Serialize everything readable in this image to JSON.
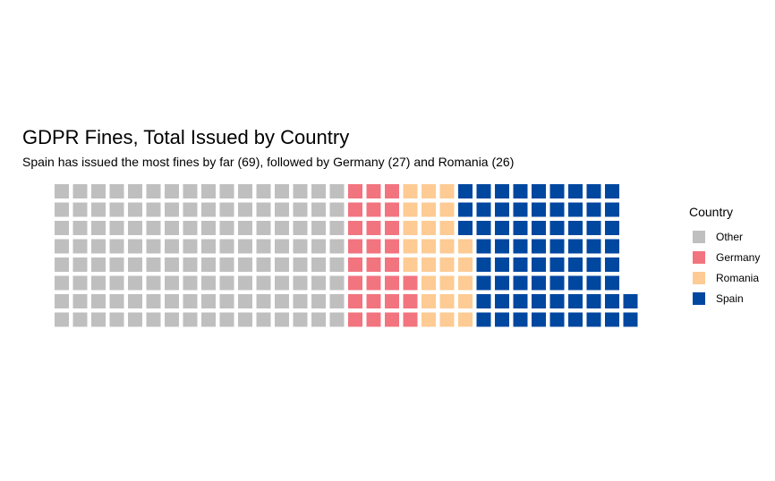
{
  "chart_data": {
    "type": "waffle",
    "title": "GDPR Fines, Total Issued by Country",
    "subtitle": "Spain has issued the most fines by far (69), followed by Germany (27) and Romania (26)",
    "rows": 8,
    "series": [
      {
        "name": "Other",
        "value": 128,
        "color": "#bfbfbf",
        "legend_label": " Other"
      },
      {
        "name": "Germany",
        "value": 27,
        "color": "#f2747f",
        "legend_label": "Germany"
      },
      {
        "name": "Romania",
        "value": 26,
        "color": "#fdcb93",
        "legend_label": "Romania"
      },
      {
        "name": "Spain",
        "value": 69,
        "color": "#0047a0",
        "legend_label": "Spain"
      }
    ],
    "legend": {
      "title": "Country",
      "position": "right"
    }
  }
}
